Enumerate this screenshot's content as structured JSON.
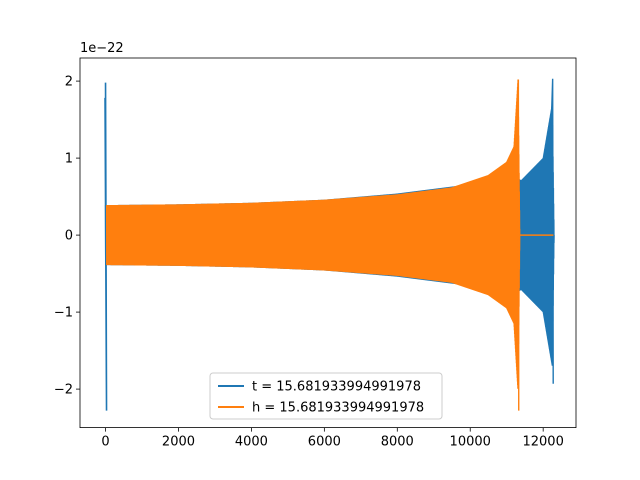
{
  "chart_data": {
    "type": "line",
    "title": "",
    "xlabel": "",
    "ylabel": "",
    "y_scale_label": "1e−22",
    "xlim": [
      -700,
      12900
    ],
    "ylim": [
      -2.5,
      2.3
    ],
    "x_ticks": [
      0,
      2000,
      4000,
      6000,
      8000,
      10000,
      12000
    ],
    "x_tick_labels": [
      "0",
      "2000",
      "4000",
      "6000",
      "8000",
      "10000",
      "12000"
    ],
    "y_ticks": [
      -2,
      -1,
      0,
      1,
      2
    ],
    "y_tick_labels": [
      "−2",
      "−1",
      "0",
      "1",
      "2"
    ],
    "grid": false,
    "legend_position": "lower-center",
    "series": [
      {
        "name": "t = 15.681933994991978",
        "color": "#1f77b4",
        "description_points": {
          "initial_spike": {
            "x": 0,
            "ymax": 1.98,
            "ymin": -2.28
          },
          "amplitude_x": [
            0,
            2000,
            4000,
            6000,
            8000,
            10000,
            11200,
            11400,
            12000,
            12250,
            12300
          ],
          "amplitude_y": [
            0.39,
            0.4,
            0.42,
            0.46,
            0.54,
            0.66,
            0.76,
            0.71,
            1.0,
            1.7,
            0
          ],
          "final_peak": {
            "x": 12260,
            "ymax": 2.03,
            "ymin": -1.93
          }
        }
      },
      {
        "name": "h = 15.681933994991978",
        "color": "#ff7f0e",
        "description_points": {
          "amplitude_x": [
            30,
            2000,
            4000,
            6000,
            8000,
            9500,
            10500,
            11000,
            11200,
            11310,
            11360
          ],
          "amplitude_y": [
            0.39,
            0.4,
            0.42,
            0.46,
            0.53,
            0.62,
            0.78,
            0.95,
            1.15,
            2.02,
            0
          ],
          "merger_peak": {
            "x": 11320,
            "ymax": 2.02,
            "ymin": -2.28
          },
          "tail_x_range": [
            11360,
            12280
          ],
          "tail_value": 0
        }
      }
    ]
  }
}
